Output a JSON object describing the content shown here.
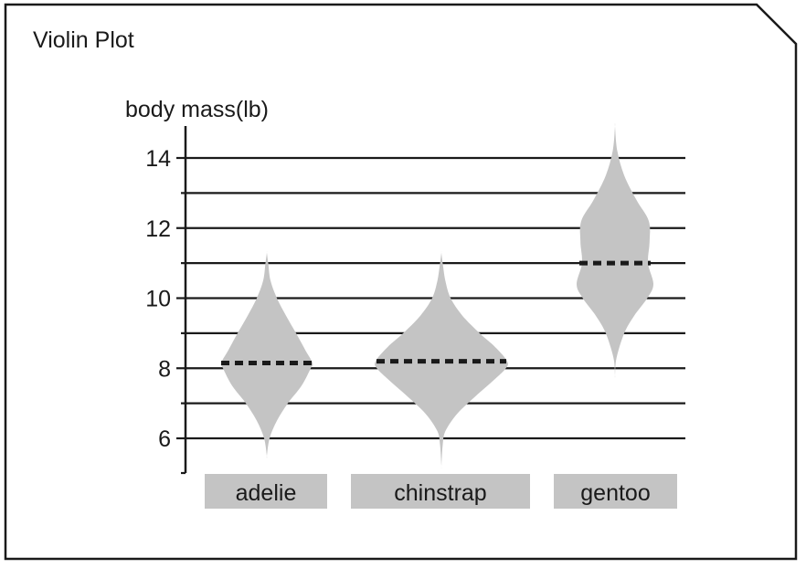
{
  "chart_data": {
    "type": "violin",
    "title": "Violin Plot",
    "ylabel": "body mass(lb)",
    "xlabel": "",
    "ylim": [
      5,
      14.9
    ],
    "yticks": [
      6,
      8,
      10,
      12,
      14
    ],
    "grid": true,
    "categories": [
      "adelie",
      "chinstrap",
      "gentoo"
    ],
    "violins": [
      {
        "category": "adelie",
        "median": 8.15,
        "min": 5.5,
        "max": 11.3,
        "profile": [
          [
            5.5,
            0.0
          ],
          [
            6.0,
            0.06
          ],
          [
            6.5,
            0.22
          ],
          [
            7.0,
            0.46
          ],
          [
            7.5,
            0.76
          ],
          [
            8.0,
            0.96
          ],
          [
            8.15,
            1.0
          ],
          [
            8.5,
            0.85
          ],
          [
            9.0,
            0.64
          ],
          [
            9.5,
            0.42
          ],
          [
            10.0,
            0.22
          ],
          [
            10.5,
            0.08
          ],
          [
            11.0,
            0.03
          ],
          [
            11.3,
            0.0
          ]
        ]
      },
      {
        "category": "chinstrap",
        "median": 8.2,
        "min": 5.2,
        "max": 11.3,
        "profile": [
          [
            5.2,
            0.0
          ],
          [
            5.8,
            0.02
          ],
          [
            6.2,
            0.06
          ],
          [
            6.7,
            0.24
          ],
          [
            7.2,
            0.52
          ],
          [
            7.7,
            0.82
          ],
          [
            8.0,
            0.98
          ],
          [
            8.2,
            1.0
          ],
          [
            8.6,
            0.82
          ],
          [
            9.0,
            0.58
          ],
          [
            9.5,
            0.32
          ],
          [
            10.0,
            0.14
          ],
          [
            10.5,
            0.06
          ],
          [
            11.0,
            0.02
          ],
          [
            11.3,
            0.0
          ]
        ]
      },
      {
        "category": "gentoo",
        "median": 11.0,
        "min": 7.8,
        "max": 14.9,
        "profile": [
          [
            7.8,
            0.0
          ],
          [
            8.3,
            0.04
          ],
          [
            9.0,
            0.24
          ],
          [
            9.5,
            0.5
          ],
          [
            10.0,
            0.84
          ],
          [
            10.4,
            1.0
          ],
          [
            11.0,
            0.86
          ],
          [
            11.6,
            0.9
          ],
          [
            12.2,
            0.88
          ],
          [
            12.8,
            0.56
          ],
          [
            13.5,
            0.24
          ],
          [
            14.2,
            0.06
          ],
          [
            14.9,
            0.0
          ]
        ]
      }
    ]
  },
  "colors": {
    "violin_fill": "#c4c4c4",
    "label_box_fill": "#c4c4c4",
    "median_line": "#1a1a1a",
    "axis": "#1a1a1a",
    "grid": "#1a1a1a",
    "frame": "#1a1a1a"
  }
}
